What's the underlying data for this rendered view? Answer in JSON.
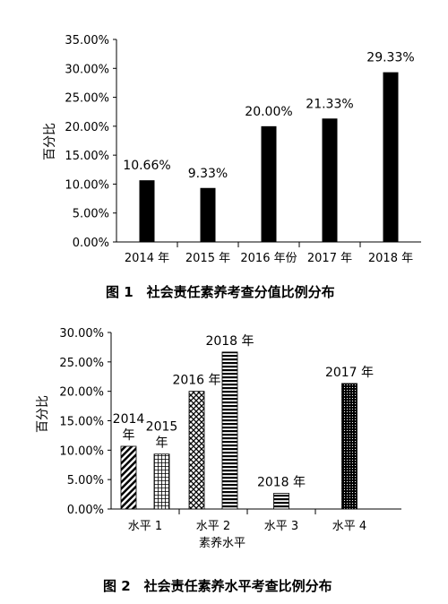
{
  "figure1": {
    "caption": "图 1　社会责任素养考查分值比例分布",
    "chart_data": {
      "type": "bar",
      "categories": [
        "2014 年",
        "2015 年",
        "2016 年份",
        "2017 年",
        "2018 年"
      ],
      "values": [
        10.66,
        9.33,
        20.0,
        21.33,
        29.33
      ],
      "data_labels": [
        "10.66%",
        "9.33%",
        "20.00%",
        "21.33%",
        "29.33%"
      ],
      "ylabel": "百分比",
      "ylim": [
        0,
        35
      ],
      "yticks": [
        "0.00%",
        "5.00%",
        "10.00%",
        "15.00%",
        "20.00%",
        "25.00%",
        "30.00%",
        "35.00%"
      ],
      "grid": false,
      "bar_color": "#000000"
    }
  },
  "figure2": {
    "caption": "图 2　社会责任素养水平考查比例分布",
    "chart_data": {
      "type": "bar",
      "categories": [
        "水平 1",
        "水平 2",
        "水平 3",
        "水平 4"
      ],
      "xlabel": "素养水平",
      "ylabel": "百分比",
      "ylim": [
        0,
        30
      ],
      "yticks": [
        "0.00%",
        "5.00%",
        "10.00%",
        "15.00%",
        "20.00%",
        "25.00%",
        "30.00%"
      ],
      "grid": false,
      "bars": [
        {
          "category": "水平 1",
          "label": "2014 年",
          "value": 10.66,
          "pattern": "diagonal"
        },
        {
          "category": "水平 1",
          "label": "2015 年",
          "value": 9.33,
          "pattern": "grid"
        },
        {
          "category": "水平 2",
          "label": "2016 年",
          "value": 20.0,
          "pattern": "crosshatch"
        },
        {
          "category": "水平 2",
          "label": "2018 年",
          "value": 26.67,
          "pattern": "horizontal"
        },
        {
          "category": "水平 3",
          "label": "2018 年",
          "value": 2.67,
          "pattern": "horizontal"
        },
        {
          "category": "水平 4",
          "label": "2017 年",
          "value": 21.33,
          "pattern": "dots"
        }
      ]
    }
  }
}
